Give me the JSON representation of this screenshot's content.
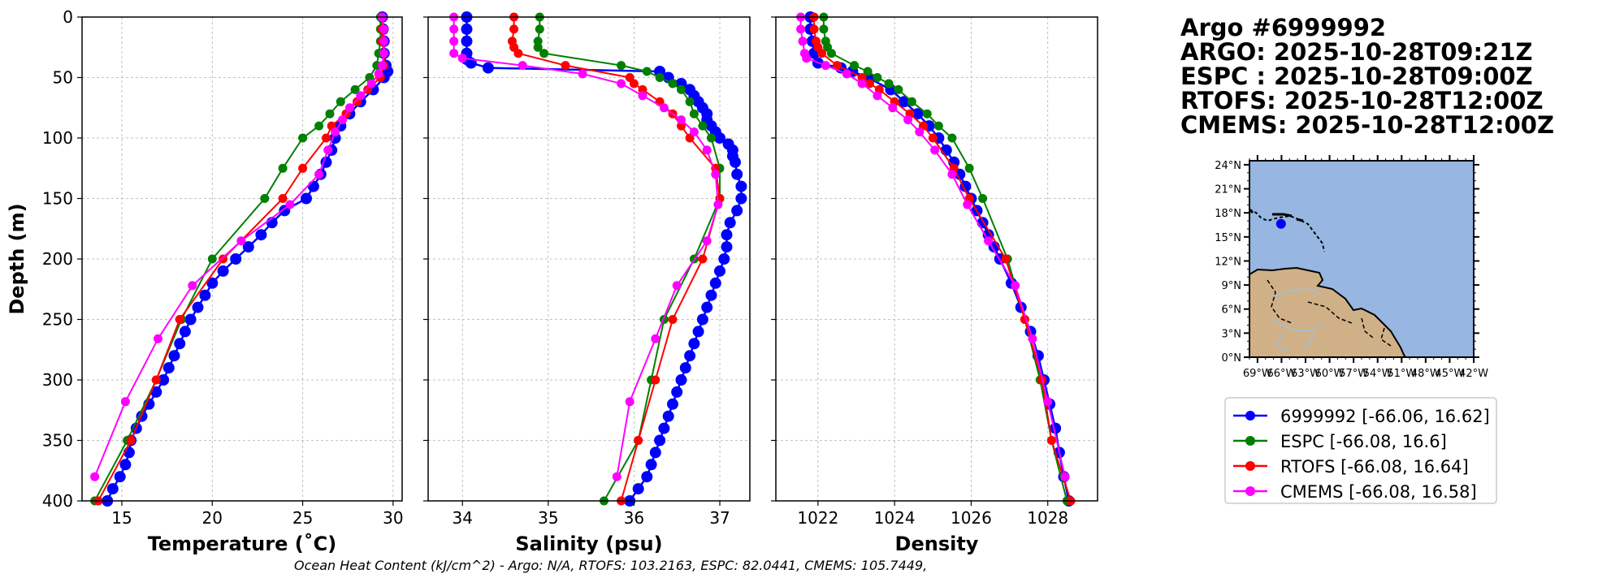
{
  "info": {
    "title": "Argo #6999992",
    "lines": [
      "ARGO: 2025-10-28T09:21Z",
      "ESPC : 2025-10-28T09:00Z",
      "RTOFS: 2025-10-28T12:00Z",
      "CMEMS: 2025-10-28T12:00Z"
    ]
  },
  "footer": "Ocean Heat Content (kJ/cm^2) - Argo: N/A,  RTOFS: 103.2163,  ESPC: 82.0441,  CMEMS: 105.7449,",
  "colors": {
    "argo": "#0000ff",
    "espc": "#008000",
    "rtofs": "#ff0000",
    "cmems": "#ff00ff",
    "ocean": "#97b6e1",
    "land": "#cfb087"
  },
  "legend": [
    {
      "label": "6999992 [-66.06, 16.62]",
      "color": "#0000ff"
    },
    {
      "label": "ESPC [-66.08, 16.6]",
      "color": "#008000"
    },
    {
      "label": "RTOFS [-66.08, 16.64]",
      "color": "#ff0000"
    },
    {
      "label": "CMEMS [-66.08, 16.58]",
      "color": "#ff00ff"
    }
  ],
  "map": {
    "lat_labels": [
      "24°N",
      "21°N",
      "18°N",
      "15°N",
      "12°N",
      "9°N",
      "6°N",
      "3°N",
      "0°N"
    ],
    "lon_labels": [
      "69°W",
      "66°W",
      "63°W",
      "60°W",
      "57°W",
      "54°W",
      "51°W",
      "48°W",
      "45°W",
      "42°W"
    ],
    "lon_range": [
      -70,
      -42
    ],
    "lat_range": [
      0,
      24.5
    ],
    "float_position": {
      "lon": -66.06,
      "lat": 16.62
    }
  },
  "chart_data": [
    {
      "type": "line",
      "title": "",
      "xlabel": "Temperature (˚C)",
      "ylabel": "Depth (m)",
      "xlim": [
        12.8,
        30.5
      ],
      "ylim": [
        400,
        0
      ],
      "xticks": [
        15,
        20,
        25,
        30
      ],
      "yticks": [
        0,
        50,
        100,
        150,
        200,
        250,
        300,
        350,
        400
      ],
      "grid": true,
      "series": [
        {
          "name": "6999992",
          "depth": [
            0,
            10,
            20,
            30,
            40,
            45,
            50,
            60,
            70,
            80,
            90,
            100,
            110,
            120,
            130,
            140,
            150,
            160,
            170,
            180,
            190,
            200,
            210,
            220,
            230,
            240,
            250,
            260,
            270,
            280,
            290,
            300,
            310,
            320,
            330,
            340,
            350,
            360,
            370,
            380,
            390,
            400
          ],
          "values": [
            29.4,
            29.45,
            29.5,
            29.5,
            29.6,
            29.7,
            29.5,
            28.9,
            28.2,
            27.6,
            27.1,
            26.8,
            26.6,
            26.3,
            26.0,
            25.6,
            25.2,
            24.0,
            23.3,
            22.7,
            22.0,
            21.3,
            20.6,
            20.0,
            19.6,
            19.2,
            18.8,
            18.5,
            18.2,
            17.9,
            17.6,
            17.3,
            16.9,
            16.5,
            16.1,
            15.8,
            15.5,
            15.4,
            15.2,
            14.9,
            14.5,
            14.2
          ]
        },
        {
          "name": "ESPC",
          "depth": [
            0,
            10,
            20,
            30,
            40,
            50,
            60,
            70,
            80,
            90,
            100,
            125,
            150,
            200,
            250,
            300,
            350,
            400
          ],
          "values": [
            29.3,
            29.3,
            29.3,
            29.2,
            29.1,
            28.7,
            27.9,
            27.1,
            26.5,
            25.9,
            25.0,
            23.9,
            22.9,
            20.0,
            18.3,
            16.9,
            15.3,
            13.5
          ]
        },
        {
          "name": "RTOFS",
          "depth": [
            0,
            10,
            20,
            30,
            40,
            50,
            60,
            70,
            80,
            90,
            100,
            125,
            150,
            200,
            250,
            300,
            350,
            400
          ],
          "values": [
            29.4,
            29.4,
            29.4,
            29.5,
            29.5,
            29.3,
            28.6,
            28.0,
            27.4,
            26.6,
            26.3,
            25.0,
            23.9,
            20.6,
            18.2,
            16.9,
            15.5,
            13.7
          ]
        },
        {
          "name": "CMEMS",
          "depth": [
            0,
            10,
            20,
            30,
            40,
            47,
            55,
            65,
            75,
            85,
            95,
            110,
            130,
            155,
            185,
            222,
            266,
            318,
            380
          ],
          "values": [
            29.4,
            29.5,
            29.5,
            29.5,
            29.4,
            29.2,
            28.8,
            28.2,
            27.6,
            27.2,
            26.8,
            26.4,
            25.9,
            24.3,
            21.6,
            18.9,
            17.0,
            15.2,
            13.5
          ]
        }
      ]
    },
    {
      "type": "line",
      "title": "",
      "xlabel": "Salinity (psu)",
      "ylabel": "",
      "xlim": [
        33.6,
        37.35
      ],
      "ylim": [
        400,
        0
      ],
      "xticks": [
        34,
        35,
        36,
        37
      ],
      "yticks": [
        0,
        50,
        100,
        150,
        200,
        250,
        300,
        350,
        400
      ],
      "grid": true,
      "series": [
        {
          "name": "6999992",
          "depth": [
            0,
            10,
            20,
            30,
            35,
            38,
            42,
            45,
            50,
            55,
            60,
            65,
            70,
            75,
            80,
            85,
            90,
            95,
            100,
            105,
            110,
            115,
            120,
            130,
            140,
            150,
            160,
            170,
            180,
            190,
            200,
            210,
            220,
            230,
            240,
            250,
            260,
            270,
            280,
            290,
            300,
            310,
            320,
            330,
            340,
            350,
            360,
            370,
            380,
            390,
            400
          ],
          "values": [
            34.05,
            34.05,
            34.05,
            34.05,
            34.05,
            34.1,
            34.3,
            36.3,
            36.4,
            36.55,
            36.65,
            36.7,
            36.75,
            36.8,
            36.85,
            36.85,
            36.9,
            36.95,
            37.0,
            37.1,
            37.15,
            37.15,
            37.18,
            37.2,
            37.25,
            37.25,
            37.2,
            37.12,
            37.08,
            37.08,
            37.05,
            37.0,
            36.95,
            36.9,
            36.85,
            36.8,
            36.75,
            36.7,
            36.65,
            36.6,
            36.55,
            36.5,
            36.45,
            36.4,
            36.35,
            36.3,
            36.25,
            36.2,
            36.15,
            36.05,
            35.95
          ]
        },
        {
          "name": "ESPC",
          "depth": [
            0,
            10,
            20,
            25,
            30,
            40,
            45,
            50,
            55,
            60,
            70,
            80,
            90,
            100,
            125,
            150,
            200,
            250,
            300,
            350,
            400
          ],
          "values": [
            34.9,
            34.9,
            34.88,
            34.88,
            34.95,
            35.85,
            36.15,
            36.3,
            36.45,
            36.55,
            36.65,
            36.7,
            36.8,
            36.9,
            37.0,
            37.0,
            36.7,
            36.35,
            36.2,
            36.05,
            35.65
          ]
        },
        {
          "name": "RTOFS",
          "depth": [
            0,
            10,
            20,
            25,
            30,
            40,
            50,
            55,
            60,
            70,
            80,
            90,
            100,
            125,
            150,
            200,
            250,
            300,
            350,
            400
          ],
          "values": [
            34.6,
            34.6,
            34.58,
            34.6,
            34.65,
            35.2,
            35.95,
            36.0,
            36.1,
            36.3,
            36.45,
            36.55,
            36.65,
            36.95,
            37.0,
            36.8,
            36.45,
            36.25,
            36.05,
            35.85
          ]
        },
        {
          "name": "CMEMS",
          "depth": [
            0,
            10,
            20,
            30,
            34,
            40,
            47,
            55,
            65,
            75,
            85,
            95,
            110,
            130,
            155,
            185,
            222,
            266,
            318,
            380
          ],
          "values": [
            33.9,
            33.9,
            33.9,
            33.9,
            34.0,
            34.7,
            35.4,
            35.85,
            36.1,
            36.35,
            36.55,
            36.7,
            36.85,
            36.95,
            36.98,
            36.85,
            36.5,
            36.25,
            35.95,
            35.8
          ]
        }
      ]
    },
    {
      "type": "line",
      "title": "",
      "xlabel": "Density",
      "ylabel": "",
      "xlim": [
        1020.9,
        1029.3
      ],
      "ylim": [
        400,
        0
      ],
      "xticks": [
        1022,
        1024,
        1026,
        1028
      ],
      "yticks": [
        0,
        50,
        100,
        150,
        200,
        250,
        300,
        350,
        400
      ],
      "grid": true,
      "series": [
        {
          "name": "6999992",
          "depth": [
            0,
            10,
            20,
            30,
            38,
            42,
            45,
            50,
            60,
            70,
            80,
            90,
            100,
            110,
            120,
            130,
            140,
            150,
            160,
            170,
            180,
            190,
            200,
            220,
            240,
            260,
            280,
            300,
            320,
            340,
            360,
            380,
            400
          ],
          "values": [
            1021.8,
            1021.8,
            1021.85,
            1021.9,
            1022.0,
            1022.6,
            1022.9,
            1023.3,
            1023.9,
            1024.25,
            1024.6,
            1024.9,
            1025.15,
            1025.35,
            1025.55,
            1025.7,
            1025.85,
            1026.0,
            1026.15,
            1026.3,
            1026.45,
            1026.6,
            1026.75,
            1027.05,
            1027.3,
            1027.55,
            1027.75,
            1027.9,
            1028.05,
            1028.2,
            1028.3,
            1028.42,
            1028.55
          ]
        },
        {
          "name": "ESPC",
          "depth": [
            0,
            10,
            20,
            25,
            30,
            40,
            45,
            50,
            55,
            60,
            70,
            80,
            90,
            100,
            125,
            150,
            200,
            250,
            300,
            350,
            400
          ],
          "values": [
            1022.15,
            1022.15,
            1022.2,
            1022.25,
            1022.35,
            1022.95,
            1023.3,
            1023.55,
            1023.85,
            1024.1,
            1024.45,
            1024.85,
            1025.15,
            1025.5,
            1025.95,
            1026.3,
            1026.95,
            1027.4,
            1027.8,
            1028.1,
            1028.5
          ]
        },
        {
          "name": "RTOFS",
          "depth": [
            0,
            10,
            20,
            25,
            30,
            40,
            50,
            55,
            60,
            70,
            80,
            90,
            100,
            125,
            150,
            200,
            250,
            300,
            350,
            400
          ],
          "values": [
            1021.9,
            1021.9,
            1021.95,
            1022.0,
            1022.1,
            1022.5,
            1023.15,
            1023.35,
            1023.6,
            1024.0,
            1024.4,
            1024.75,
            1025.0,
            1025.55,
            1025.95,
            1026.9,
            1027.4,
            1027.85,
            1028.1,
            1028.6
          ]
        },
        {
          "name": "CMEMS",
          "depth": [
            0,
            10,
            20,
            30,
            34,
            40,
            47,
            55,
            65,
            75,
            85,
            95,
            110,
            130,
            155,
            185,
            222,
            266,
            318,
            380
          ],
          "values": [
            1021.55,
            1021.55,
            1021.6,
            1021.65,
            1021.7,
            1022.2,
            1022.75,
            1023.15,
            1023.55,
            1023.95,
            1024.35,
            1024.65,
            1025.05,
            1025.5,
            1025.9,
            1026.45,
            1027.15,
            1027.6,
            1028.0,
            1028.45
          ]
        }
      ]
    }
  ]
}
